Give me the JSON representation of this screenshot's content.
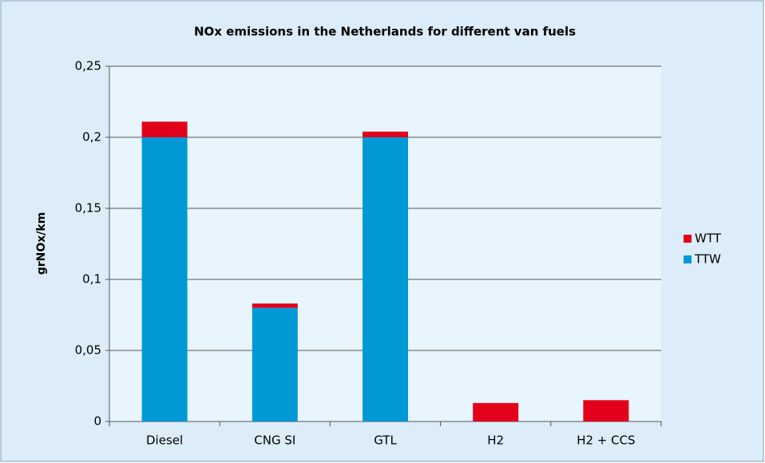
{
  "chart_data": {
    "type": "stacked_bar",
    "title": "NOx emissions in the Netherlands for different van fuels",
    "y_label": "grNOx/km",
    "categories": [
      "Diesel",
      "CNG SI",
      "GTL",
      "H2",
      "H2 + CCS"
    ],
    "series": [
      {
        "name": "TTW",
        "color": "#0099d6",
        "values": [
          0.2,
          0.08,
          0.2,
          0,
          0
        ]
      },
      {
        "name": "WTT",
        "color": "#e3001b",
        "values": [
          0.011,
          0.003,
          0.004,
          0.013,
          0.015
        ]
      }
    ],
    "ylim": [
      0,
      0.25
    ],
    "yticks": [
      0,
      {
        "value": 0.05,
        "label": "0,05"
      },
      {
        "value": 0.1,
        "label": "0,1"
      },
      {
        "value": 0.15,
        "label": "0,15"
      },
      {
        "value": 0.2,
        "label": "0,2"
      },
      {
        "value": 0.25,
        "label": "0,25"
      }
    ],
    "grid": true,
    "legend": "right"
  }
}
